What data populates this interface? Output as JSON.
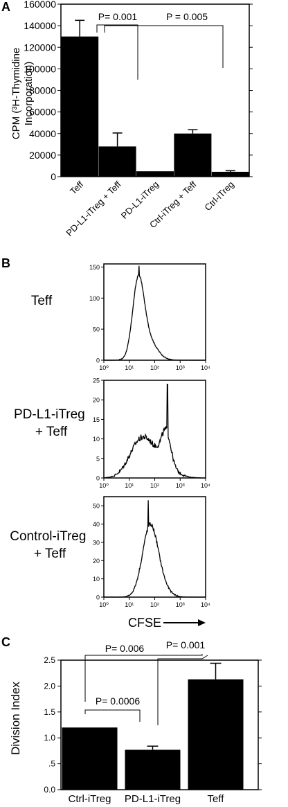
{
  "panels": {
    "a_letter": "A",
    "b_letter": "B",
    "c_letter": "C"
  },
  "chart_data": [
    {
      "id": "A",
      "type": "bar",
      "ylabel_line1": "CPM (³H-Thymidine",
      "ylabel_line2": "Incorporation)",
      "categories": [
        "Teff",
        "PD-L1-iTreg + Teff",
        "PD-L1-iTreg",
        "Ctrl-iTreg + Teff",
        "Ctrl-iTreg"
      ],
      "values": [
        130000,
        28000,
        5000,
        40000,
        4500
      ],
      "errors": [
        15000,
        12500,
        0,
        3500,
        1000
      ],
      "ylim": [
        0,
        160000
      ],
      "yticks": [
        0,
        20000,
        40000,
        60000,
        80000,
        100000,
        120000,
        140000,
        160000
      ],
      "ytick_labels": [
        "0",
        "20000",
        "40000",
        "60000",
        "80000",
        "100000",
        "120000",
        "140000",
        "160000"
      ],
      "annotations": [
        {
          "label": "P= 0.001",
          "from": 0,
          "to": 1
        },
        {
          "label": "P = 0.005",
          "from": 0,
          "to": 3
        }
      ],
      "bar_color": "#000000"
    },
    {
      "id": "B",
      "type": "line",
      "xlabel": "CFSE",
      "xscale": "log",
      "xlim": [
        1,
        10000
      ],
      "xtick_labels": [
        "10⁰",
        "10¹",
        "10²",
        "10³",
        "10⁴"
      ],
      "histograms": [
        {
          "label": "Teff",
          "ylim": [
            0,
            155
          ],
          "ytick_labels": [
            "0",
            "50",
            "100",
            "150"
          ],
          "yticks": [
            0,
            50,
            100,
            150
          ],
          "components": [
            {
              "mu": 1.35,
              "sigma": 0.22,
              "amp": 115
            },
            {
              "mu": 1.7,
              "sigma": 0.35,
              "amp": 35
            }
          ],
          "peak": {
            "x": 1.38,
            "y": 152
          }
        },
        {
          "label": "PD-L1-iTreg\n+ Teff",
          "ylim": [
            0,
            25
          ],
          "ytick_labels": [
            "0",
            "5",
            "10",
            "15",
            "20",
            "25"
          ],
          "yticks": [
            0,
            5,
            10,
            15,
            20,
            25
          ],
          "components": [
            {
              "mu": 1.45,
              "sigma": 0.45,
              "amp": 9
            },
            {
              "mu": 2.45,
              "sigma": 0.18,
              "amp": 8
            },
            {
              "mu": 2.2,
              "sigma": 0.5,
              "amp": 4
            }
          ],
          "peak": {
            "x": 2.5,
            "y": 24
          }
        },
        {
          "label": "Control-iTreg\n+ Teff",
          "ylim": [
            0,
            55
          ],
          "ytick_labels": [
            "0",
            "10",
            "20",
            "30",
            "40",
            "50"
          ],
          "yticks": [
            0,
            10,
            20,
            30,
            40,
            50
          ],
          "components": [
            {
              "mu": 1.8,
              "sigma": 0.3,
              "amp": 34
            },
            {
              "mu": 2.1,
              "sigma": 0.35,
              "amp": 8
            }
          ],
          "peak": {
            "x": 1.75,
            "y": 53
          }
        }
      ]
    },
    {
      "id": "C",
      "type": "bar",
      "ylabel": "Division Index",
      "categories": [
        "Ctrl-iTreg",
        "PD-L1-iTreg",
        "Teff"
      ],
      "values": [
        1.2,
        0.77,
        2.13
      ],
      "errors": [
        0,
        0.07,
        0.31
      ],
      "ylim": [
        0,
        2.5
      ],
      "yticks": [
        0,
        0.5,
        1.0,
        1.5,
        2.0,
        2.5
      ],
      "ytick_labels": [
        "0.0",
        ".5",
        "1.0",
        "1.5",
        "2.0",
        "2.5"
      ],
      "annotations": [
        {
          "label": "P= 0.006",
          "from": 0,
          "to": 2
        },
        {
          "label": "P= 0.001",
          "from": 1,
          "to": 2
        },
        {
          "label": "P= 0.0006",
          "from": 0,
          "to": 1
        }
      ],
      "bar_color": "#000000"
    }
  ]
}
